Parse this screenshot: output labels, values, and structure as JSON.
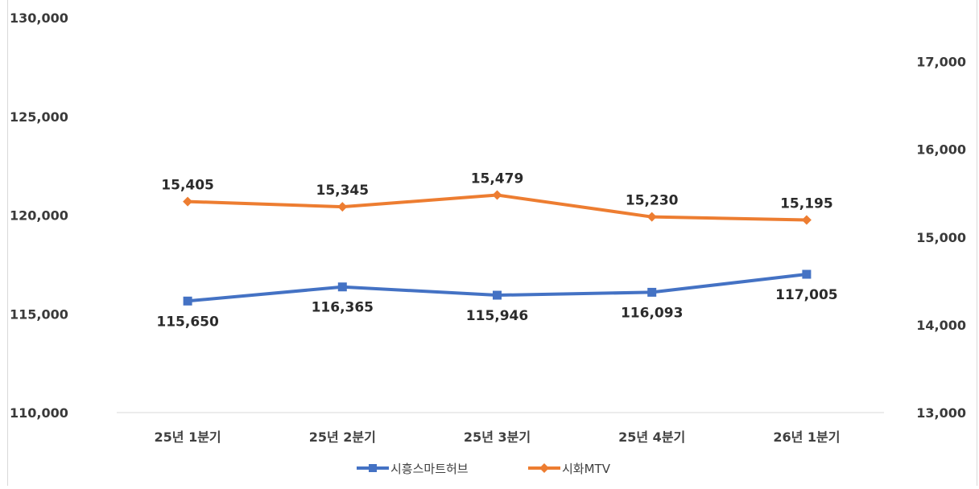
{
  "chart_data": {
    "type": "line",
    "categories": [
      "25년 1분기",
      "25년 2분기",
      "25년 3분기",
      "25년 4분기",
      "26년 1분기"
    ],
    "series": [
      {
        "name": "시흥스마트허브",
        "axis": "left",
        "color": "#4472c4",
        "marker": "square",
        "values": [
          115650,
          116365,
          115946,
          116093,
          117005
        ],
        "labels": [
          "115,650",
          "116,365",
          "115,946",
          "116,093",
          "117,005"
        ],
        "label_position": "below"
      },
      {
        "name": "시화MTV",
        "axis": "right",
        "color": "#ed7d31",
        "marker": "diamond",
        "values": [
          15405,
          15345,
          15479,
          15230,
          15195
        ],
        "labels": [
          "15,405",
          "15,345",
          "15,479",
          "15,230",
          "15,195"
        ],
        "label_position": "above"
      }
    ],
    "y_left": {
      "lim": [
        110000,
        130000
      ],
      "ticks": [
        110000,
        115000,
        120000,
        125000,
        130000
      ],
      "tick_labels": [
        "110,000",
        "115,000",
        "120,000",
        "125,000",
        "130,000"
      ]
    },
    "y_right": {
      "lim": [
        13000,
        17500
      ],
      "ticks": [
        13000,
        14000,
        15000,
        16000,
        17000
      ],
      "tick_labels": [
        "13,000",
        "14,000",
        "15,000",
        "16,000",
        "17,000"
      ]
    },
    "grid": false,
    "legend_position": "bottom"
  }
}
